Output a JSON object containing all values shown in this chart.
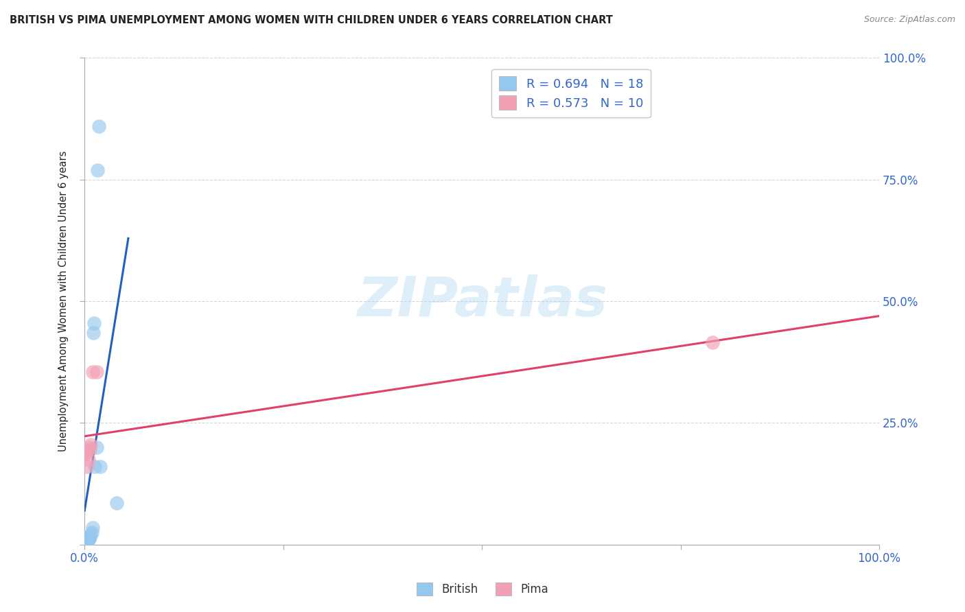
{
  "title": "BRITISH VS PIMA UNEMPLOYMENT AMONG WOMEN WITH CHILDREN UNDER 6 YEARS CORRELATION CHART",
  "source": "Source: ZipAtlas.com",
  "ylabel": "Unemployment Among Women with Children Under 6 years",
  "xlim": [
    0.0,
    1.0
  ],
  "ylim": [
    0.0,
    1.0
  ],
  "xticks": [
    0.0,
    0.25,
    0.5,
    0.75,
    1.0
  ],
  "yticks": [
    0.0,
    0.25,
    0.5,
    0.75,
    1.0
  ],
  "legend_british_r": "R = 0.694",
  "legend_british_n": "N = 18",
  "legend_pima_r": "R = 0.573",
  "legend_pima_n": "N = 10",
  "british_color": "#95C8EE",
  "pima_color": "#F2A0B5",
  "british_line_color": "#2060C0",
  "pima_line_color": "#E0406A",
  "british_x": [
    0.001,
    0.002,
    0.003,
    0.004,
    0.005,
    0.006,
    0.007,
    0.008,
    0.009,
    0.01,
    0.011,
    0.012,
    0.013,
    0.015,
    0.016,
    0.018,
    0.02,
    0.04
  ],
  "british_y": [
    0.01,
    0.015,
    0.01,
    0.012,
    0.01,
    0.012,
    0.015,
    0.02,
    0.025,
    0.035,
    0.435,
    0.455,
    0.16,
    0.2,
    0.77,
    0.86,
    0.16,
    0.085
  ],
  "pima_x": [
    0.001,
    0.002,
    0.003,
    0.005,
    0.006,
    0.007,
    0.008,
    0.01,
    0.015,
    0.79
  ],
  "pima_y": [
    0.185,
    0.19,
    0.16,
    0.175,
    0.2,
    0.195,
    0.205,
    0.355,
    0.355,
    0.415
  ],
  "watermark": "ZIPatlas",
  "background_color": "#FFFFFF",
  "grid_color": "#CCCCCC",
  "title_color": "#222222",
  "source_color": "#888888",
  "axis_label_color": "#222222",
  "tick_color": "#3366CC"
}
